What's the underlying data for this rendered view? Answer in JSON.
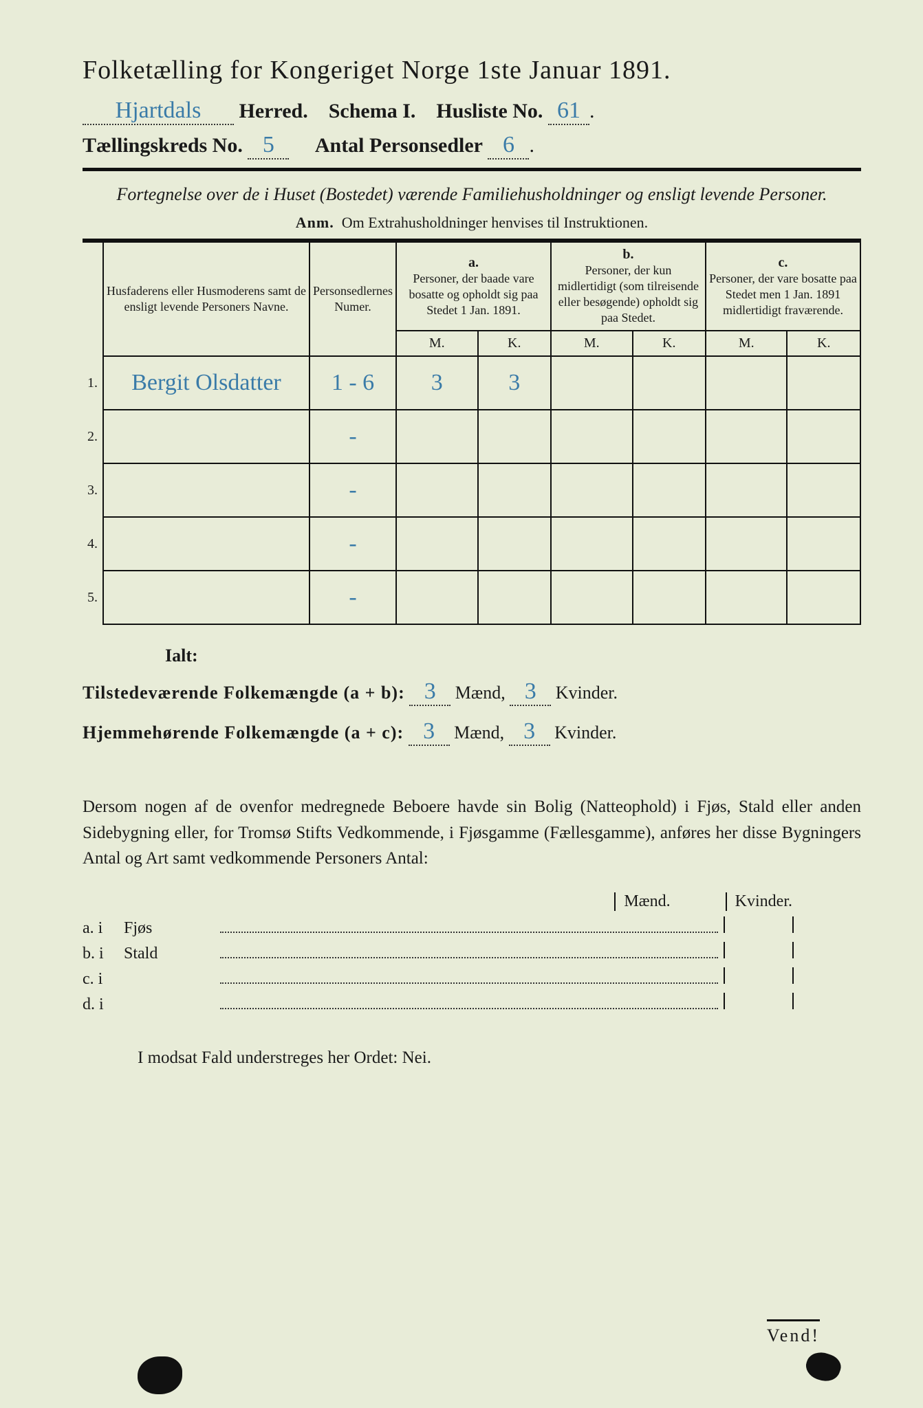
{
  "header": {
    "title": "Folketælling for Kongeriget Norge 1ste Januar 1891.",
    "herred_value": "Hjartdals",
    "herred_label": "Herred.",
    "schema_label": "Schema I.",
    "husliste_label": "Husliste No.",
    "husliste_value": "61",
    "kreds_label": "Tællingskreds No.",
    "kreds_value": "5",
    "antal_label": "Antal Personsedler",
    "antal_value": "6"
  },
  "subtitle": "Fortegnelse over de i Huset (Bostedet) værende Familiehusholdninger og ensligt levende Personer.",
  "anm_label": "Anm.",
  "anm_text": "Om Extrahusholdninger henvises til Instruktionen.",
  "table": {
    "col1": "Husfaderens eller Husmoderens samt de ensligt levende Personers Navne.",
    "col2": "Personsedlernes Numer.",
    "col_a_label": "a.",
    "col_a": "Personer, der baade vare bosatte og opholdt sig paa Stedet 1 Jan. 1891.",
    "col_b_label": "b.",
    "col_b": "Personer, der kun midlertidigt (som tilreisende eller besøgende) opholdt sig paa Stedet.",
    "col_c_label": "c.",
    "col_c": "Personer, der vare bosatte paa Stedet men 1 Jan. 1891 midlertidigt fraværende.",
    "m": "M.",
    "k": "K.",
    "rows": [
      {
        "n": "1.",
        "name": "Bergit Olsdatter",
        "num": "1 - 6",
        "am": "3",
        "ak": "3",
        "bm": "",
        "bk": "",
        "cm": "",
        "ck": ""
      },
      {
        "n": "2.",
        "name": "",
        "num": "-",
        "am": "",
        "ak": "",
        "bm": "",
        "bk": "",
        "cm": "",
        "ck": ""
      },
      {
        "n": "3.",
        "name": "",
        "num": "-",
        "am": "",
        "ak": "",
        "bm": "",
        "bk": "",
        "cm": "",
        "ck": ""
      },
      {
        "n": "4.",
        "name": "",
        "num": "-",
        "am": "",
        "ak": "",
        "bm": "",
        "bk": "",
        "cm": "",
        "ck": ""
      },
      {
        "n": "5.",
        "name": "",
        "num": "-",
        "am": "",
        "ak": "",
        "bm": "",
        "bk": "",
        "cm": "",
        "ck": ""
      }
    ]
  },
  "totals": {
    "ialt": "Ialt:",
    "line1_label": "Tilstedeværende Folkemængde (a + b):",
    "line2_label": "Hjemmehørende Folkemængde (a + c):",
    "maend": "Mænd,",
    "kvinder": "Kvinder.",
    "l1_m": "3",
    "l1_k": "3",
    "l2_m": "3",
    "l2_k": "3"
  },
  "para": "Dersom nogen af de ovenfor medregnede Beboere havde sin Bolig (Natteophold) i Fjøs, Stald eller anden Sidebygning eller, for Tromsø Stifts Vedkommende, i Fjøsgamme (Fællesgamme), anføres her disse Bygningers Antal og Art samt vedkommende Personers Antal:",
  "mk": {
    "m": "Mænd.",
    "k": "Kvinder."
  },
  "sublist": [
    {
      "lbl": "a.  i",
      "loc": "Fjøs"
    },
    {
      "lbl": "b.  i",
      "loc": "Stald"
    },
    {
      "lbl": "c.  i",
      "loc": ""
    },
    {
      "lbl": "d.  i",
      "loc": ""
    }
  ],
  "nei": "I modsat Fald understreges her Ordet: Nei.",
  "vend": "Vend!",
  "colors": {
    "background": "#e8ecd8",
    "ink": "#1a1a1a",
    "handwriting": "#3a7ba8"
  }
}
